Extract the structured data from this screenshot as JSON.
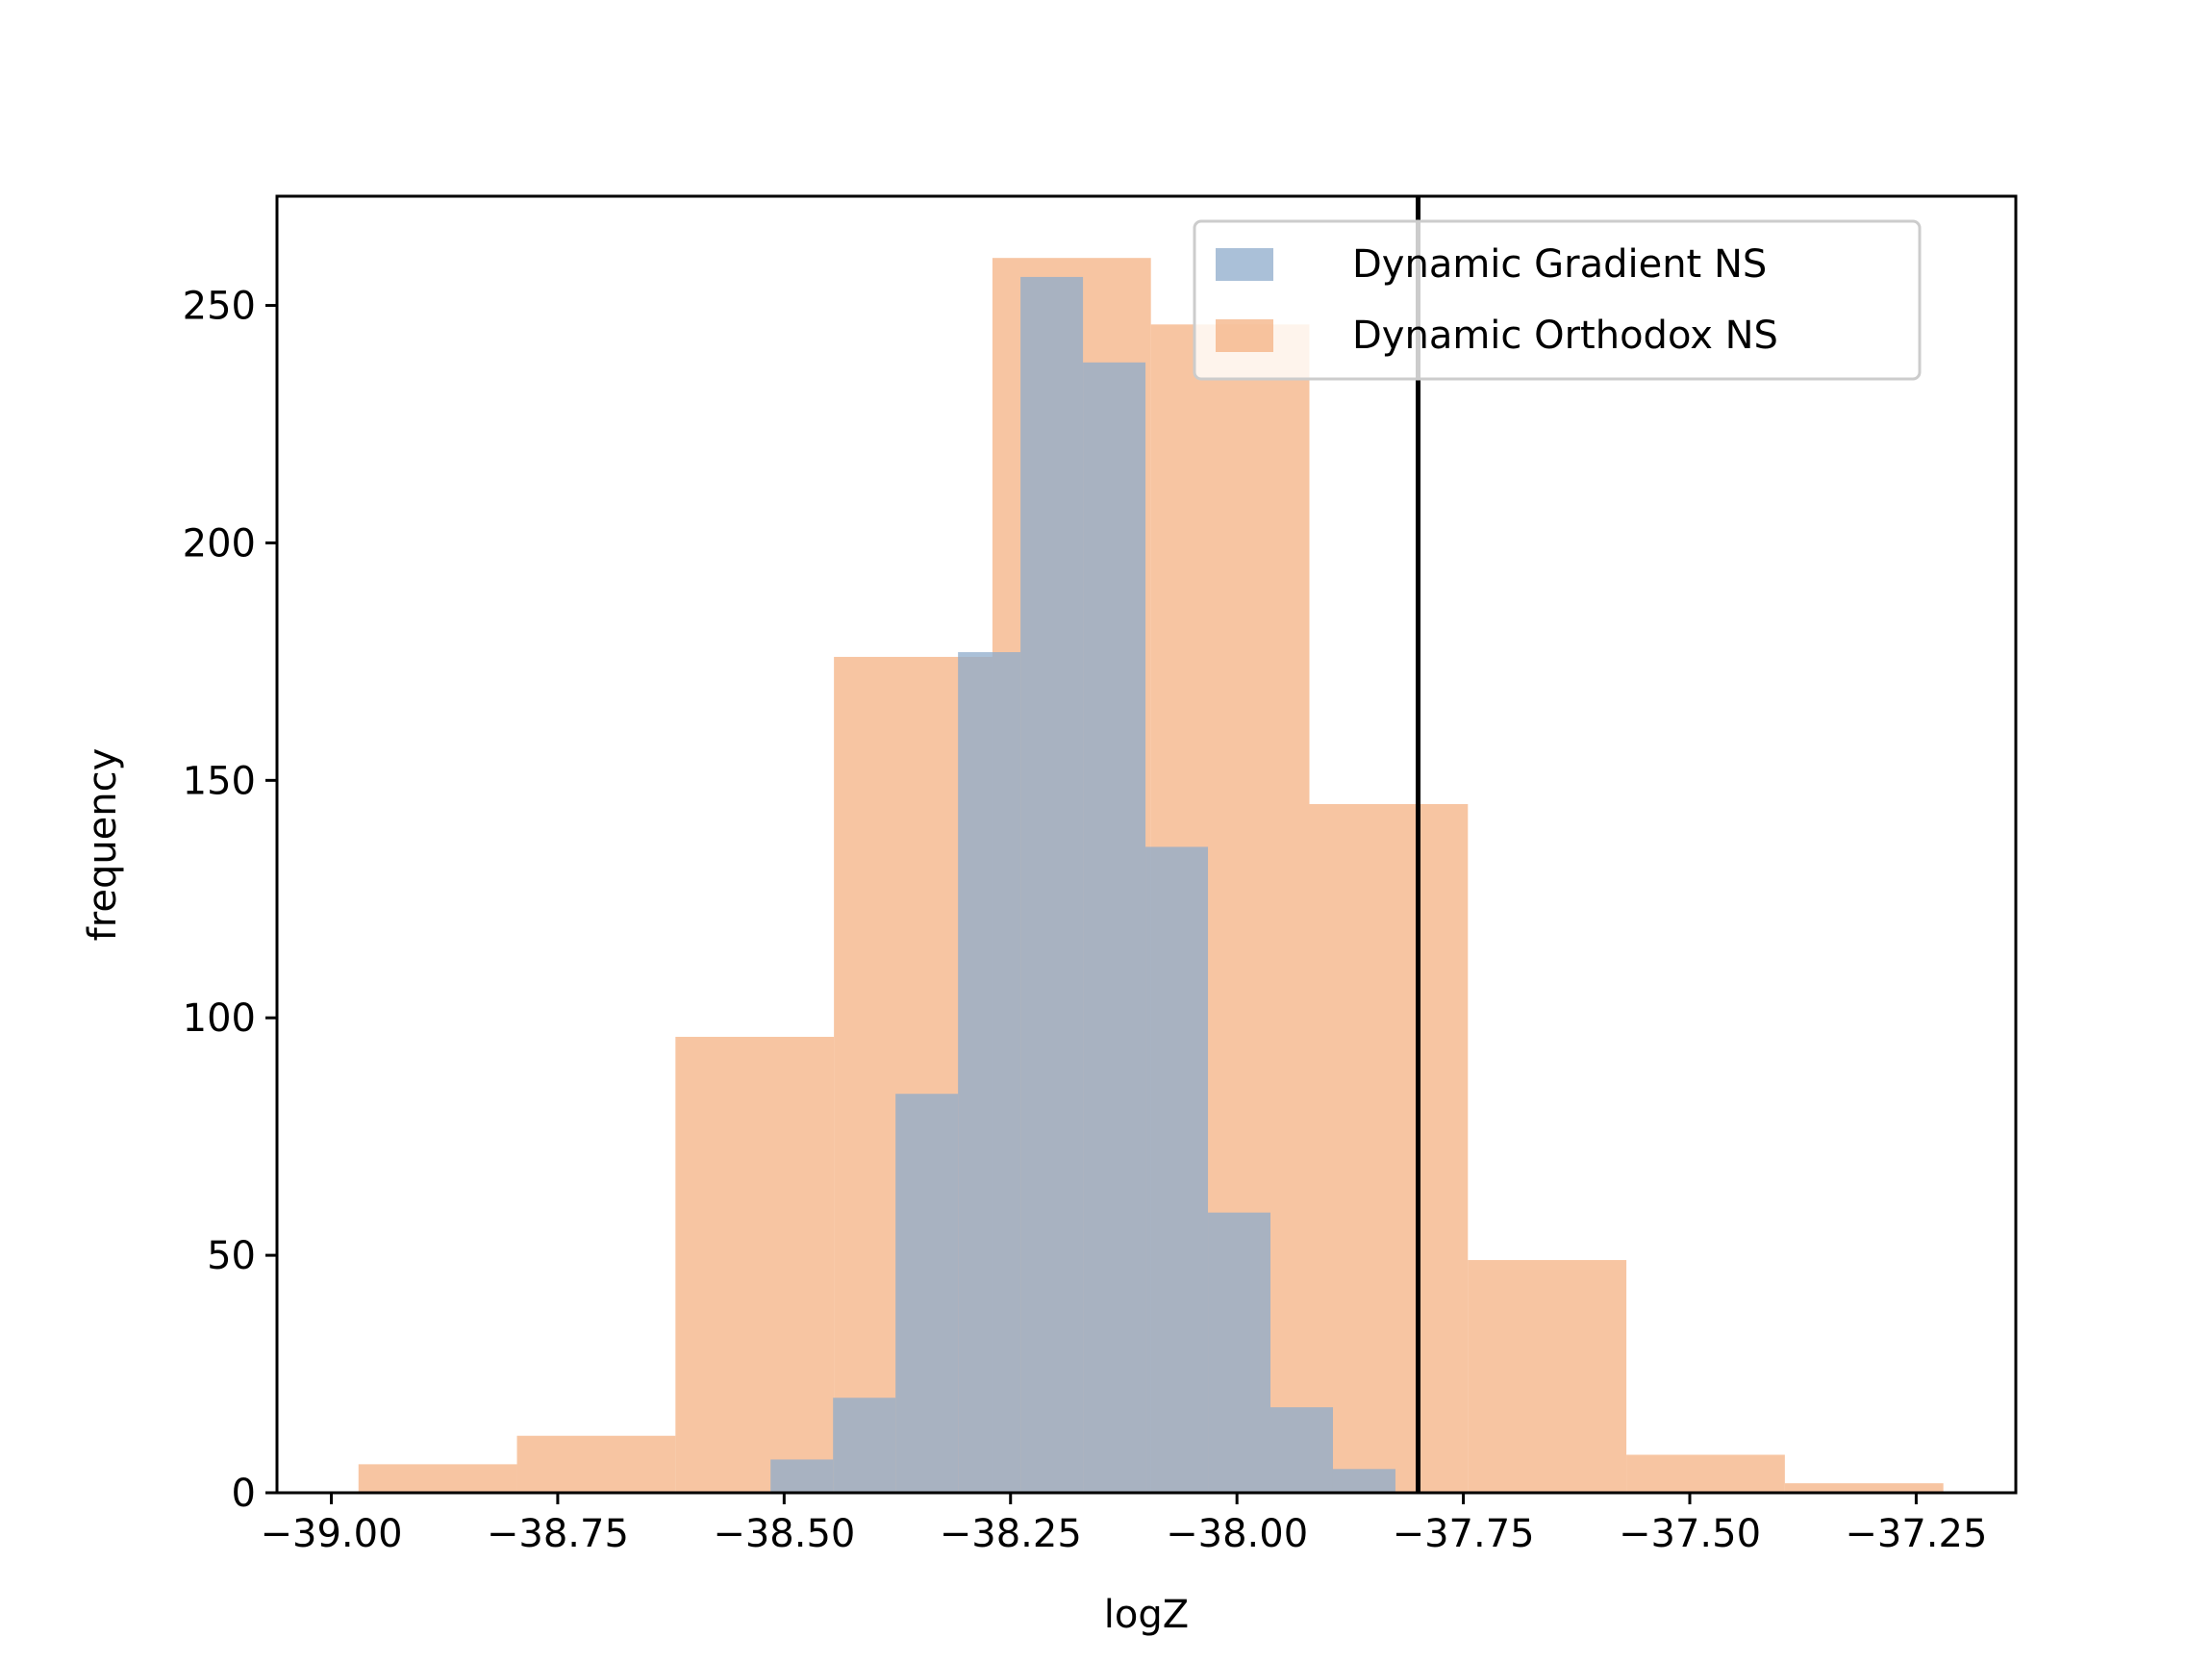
{
  "chart_data": {
    "type": "histogram",
    "xlabel": "logZ",
    "ylabel": "frequency",
    "xlim": [
      -39.06,
      -37.14
    ],
    "ylim": [
      0,
      273
    ],
    "xticks": [
      -39.0,
      -38.75,
      -38.5,
      -38.25,
      -38.0,
      -37.75,
      -37.5,
      -37.25
    ],
    "xtick_labels": [
      "−39.00",
      "−38.75",
      "−38.50",
      "−38.25",
      "−38.00",
      "−37.75",
      "−37.50",
      "−37.25"
    ],
    "yticks": [
      0,
      50,
      100,
      150,
      200,
      250
    ],
    "ytick_labels": [
      "0",
      "50",
      "100",
      "150",
      "200",
      "250"
    ],
    "legend_position": "upper-right",
    "series": [
      {
        "name": "Dynamic Orthodox NS",
        "color": "#f4b183",
        "opacity": 0.75,
        "bins": [
          {
            "x0": -38.97,
            "x1": -38.795,
            "count": 6
          },
          {
            "x0": -38.795,
            "x1": -38.62,
            "count": 12
          },
          {
            "x0": -38.62,
            "x1": -38.445,
            "count": 96
          },
          {
            "x0": -38.445,
            "x1": -38.27,
            "count": 176
          },
          {
            "x0": -38.27,
            "x1": -38.095,
            "count": 260
          },
          {
            "x0": -38.095,
            "x1": -37.92,
            "count": 246
          },
          {
            "x0": -37.92,
            "x1": -37.745,
            "count": 145
          },
          {
            "x0": -37.745,
            "x1": -37.57,
            "count": 49
          },
          {
            "x0": -37.57,
            "x1": -37.395,
            "count": 8
          },
          {
            "x0": -37.395,
            "x1": -37.22,
            "count": 2
          }
        ]
      },
      {
        "name": "Dynamic Gradient NS",
        "color": "#8eabcb",
        "opacity": 0.75,
        "bins": [
          {
            "x0": -38.515,
            "x1": -38.446,
            "count": 7
          },
          {
            "x0": -38.446,
            "x1": -38.377,
            "count": 20
          },
          {
            "x0": -38.377,
            "x1": -38.308,
            "count": 84
          },
          {
            "x0": -38.308,
            "x1": -38.239,
            "count": 177
          },
          {
            "x0": -38.239,
            "x1": -38.17,
            "count": 256
          },
          {
            "x0": -38.17,
            "x1": -38.101,
            "count": 238
          },
          {
            "x0": -38.101,
            "x1": -38.032,
            "count": 136
          },
          {
            "x0": -38.032,
            "x1": -37.963,
            "count": 59
          },
          {
            "x0": -37.963,
            "x1": -37.894,
            "count": 18
          },
          {
            "x0": -37.894,
            "x1": -37.825,
            "count": 5
          }
        ]
      }
    ],
    "legend_order": [
      "Dynamic Gradient NS",
      "Dynamic Orthodox NS"
    ],
    "reference_line": {
      "x": -37.8,
      "color": "#000000"
    }
  }
}
